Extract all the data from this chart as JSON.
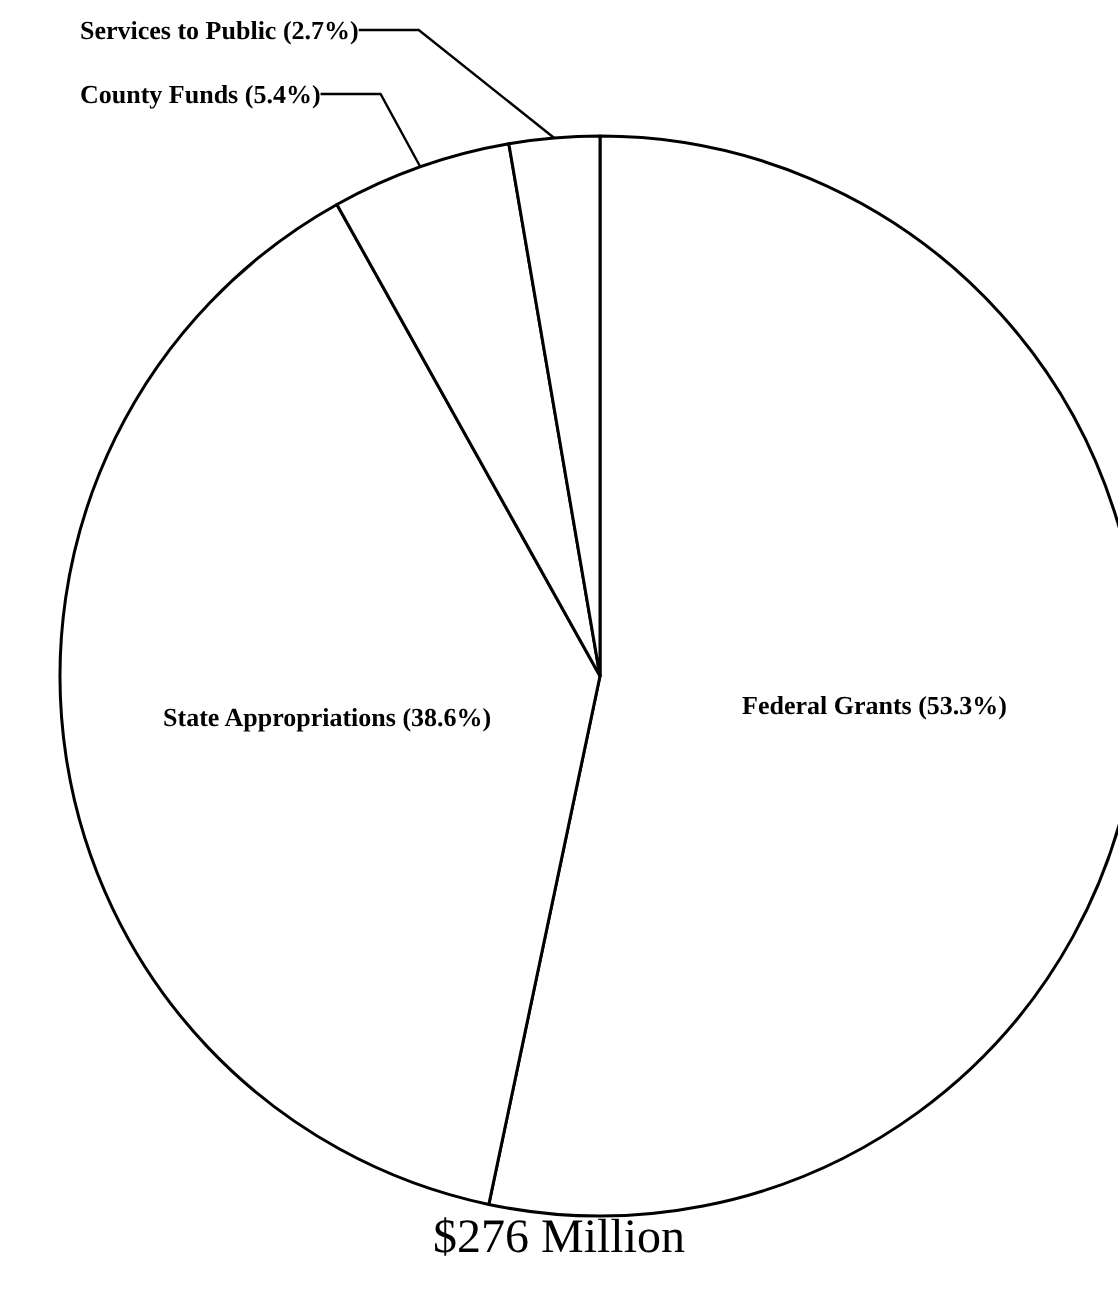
{
  "chart_data": {
    "type": "pie",
    "title": "$276 Million",
    "categories": [
      "Federal Grants",
      "State Appropriations",
      "County Funds",
      "Services to Public"
    ],
    "values": [
      53.3,
      38.6,
      5.4,
      2.7
    ],
    "colors": [
      "#ffffff",
      "#ffffff",
      "#ffffff",
      "#ffffff"
    ],
    "value_labels": [
      "(53.3%)",
      "(38.6%)",
      "(5.4%)",
      "(2.7%)"
    ],
    "legend": false
  }
}
